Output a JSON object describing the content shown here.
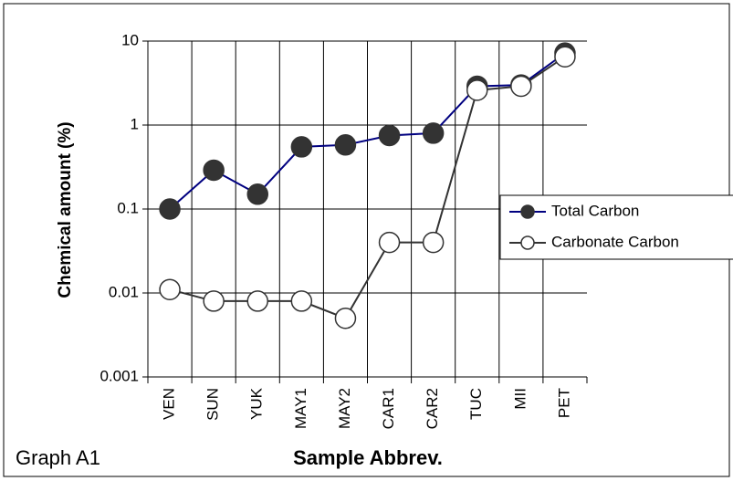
{
  "chart_data": {
    "type": "line",
    "ylabel": "Chemical amount (%)",
    "xlabel": "Sample Abbrev.",
    "caption": "Graph A1",
    "categories": [
      "VEN",
      "SUN",
      "YUK",
      "MAY1",
      "MAY2",
      "CAR1",
      "CAR2",
      "TUC",
      "MII",
      "PET"
    ],
    "series": [
      {
        "name": "Total Carbon",
        "color": "#000080",
        "marker_fill": "#333333",
        "values": [
          0.1,
          0.29,
          0.15,
          0.55,
          0.58,
          0.75,
          0.8,
          2.9,
          3.0,
          7.2
        ]
      },
      {
        "name": "Carbonate Carbon",
        "color": "#333333",
        "marker_fill": "#ffffff",
        "values": [
          0.011,
          0.008,
          0.008,
          0.008,
          0.005,
          0.04,
          0.04,
          2.6,
          2.9,
          6.5
        ]
      }
    ],
    "ylim": [
      0.001,
      10
    ],
    "yticks": [
      0.001,
      0.01,
      0.1,
      1,
      10
    ],
    "log_y": true,
    "grid": true,
    "legend": "right"
  }
}
